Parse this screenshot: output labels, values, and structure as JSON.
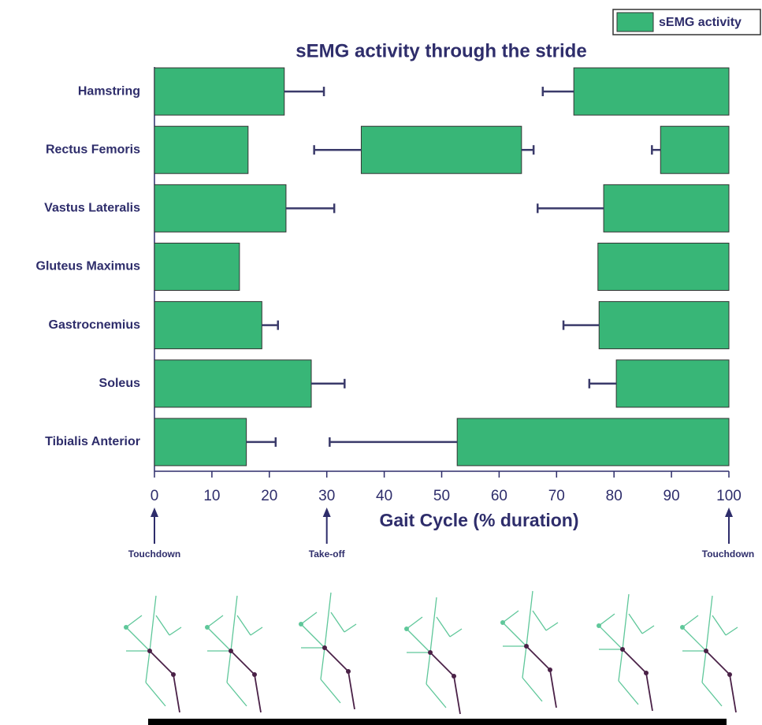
{
  "chart_data": {
    "type": "range-bar",
    "title": "sEMG activity through the stride",
    "xlabel": "Gait Cycle (% duration)",
    "legend": {
      "label": "sEMG activity",
      "corner": "top-right"
    },
    "color": "#38b677",
    "xlim": [
      0,
      100
    ],
    "xticks": [
      0,
      10,
      20,
      30,
      40,
      50,
      60,
      70,
      80,
      90,
      100
    ],
    "rows": [
      {
        "label": "Hamstring",
        "segments": [
          {
            "start": 0,
            "end": 22.6,
            "whiskers": [
              29.5
            ]
          },
          {
            "start": 73.0,
            "end": 100,
            "whiskers": [
              67.6
            ]
          }
        ]
      },
      {
        "label": "Rectus Femoris",
        "segments": [
          {
            "start": 0,
            "end": 16.3
          },
          {
            "start": 36.0,
            "end": 63.9,
            "whiskers": [
              27.8,
              66.0
            ]
          },
          {
            "start": 88.1,
            "end": 100,
            "whiskers": [
              86.6
            ]
          }
        ]
      },
      {
        "label": "Vastus Lateralis",
        "segments": [
          {
            "start": 0,
            "end": 22.9,
            "whiskers": [
              31.3
            ]
          },
          {
            "start": 78.2,
            "end": 100,
            "whiskers": [
              66.7
            ]
          }
        ]
      },
      {
        "label": "Gluteus Maximus",
        "segments": [
          {
            "start": 0,
            "end": 14.8
          },
          {
            "start": 77.2,
            "end": 100
          }
        ]
      },
      {
        "label": "Gastrocnemius",
        "segments": [
          {
            "start": 0,
            "end": 18.7,
            "whiskers": [
              21.5
            ]
          },
          {
            "start": 77.4,
            "end": 100,
            "whiskers": [
              71.2
            ]
          }
        ]
      },
      {
        "label": "Soleus",
        "segments": [
          {
            "start": 0,
            "end": 27.3,
            "whiskers": [
              33.1
            ]
          },
          {
            "start": 80.4,
            "end": 100,
            "whiskers": [
              75.7
            ]
          }
        ]
      },
      {
        "label": "Tibialis Anterior",
        "segments": [
          {
            "start": 0,
            "end": 16.0,
            "whiskers": [
              21.1
            ]
          },
          {
            "start": 52.7,
            "end": 100,
            "whiskers": [
              30.5
            ]
          }
        ]
      }
    ],
    "annotations": [
      {
        "text": "Touchdown",
        "x": 0
      },
      {
        "text": "Take-off",
        "x": 30
      },
      {
        "text": "Touchdown",
        "x": 100
      }
    ]
  }
}
